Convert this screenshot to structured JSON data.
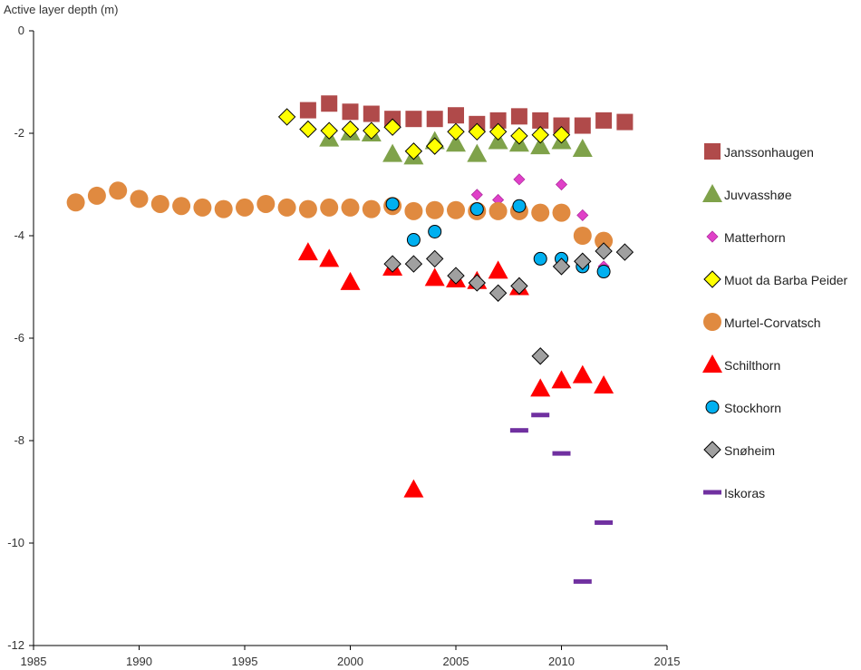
{
  "chart_data": {
    "type": "scatter",
    "ylabel": "Active layer depth (m)",
    "xlabel": "",
    "xlim": [
      1985,
      2015
    ],
    "ylim": [
      -12,
      0
    ],
    "xticks": [
      1985,
      1990,
      1995,
      2000,
      2005,
      2010,
      2015
    ],
    "yticks": [
      0,
      -2,
      -4,
      -6,
      -8,
      -10,
      -12
    ],
    "grid": false,
    "legend_position": "right",
    "series": [
      {
        "name": "Janssonhaugen",
        "marker": "square",
        "color": "#b04a4a",
        "stroke": "none",
        "points": [
          [
            1998,
            -1.55
          ],
          [
            1999,
            -1.42
          ],
          [
            2000,
            -1.58
          ],
          [
            2001,
            -1.62
          ],
          [
            2002,
            -1.72
          ],
          [
            2003,
            -1.72
          ],
          [
            2004,
            -1.72
          ],
          [
            2005,
            -1.65
          ],
          [
            2006,
            -1.82
          ],
          [
            2007,
            -1.75
          ],
          [
            2008,
            -1.67
          ],
          [
            2009,
            -1.75
          ],
          [
            2010,
            -1.85
          ],
          [
            2011,
            -1.85
          ],
          [
            2012,
            -1.75
          ],
          [
            2013,
            -1.78
          ]
        ]
      },
      {
        "name": "Juvvasshøe",
        "marker": "triangle",
        "color": "#7fa24a",
        "stroke": "none",
        "points": [
          [
            1999,
            -2.1
          ],
          [
            2000,
            -1.98
          ],
          [
            2001,
            -2.0
          ],
          [
            2002,
            -2.4
          ],
          [
            2003,
            -2.45
          ],
          [
            2004,
            -2.15
          ],
          [
            2005,
            -2.2
          ],
          [
            2006,
            -2.4
          ],
          [
            2007,
            -2.15
          ],
          [
            2008,
            -2.2
          ],
          [
            2009,
            -2.25
          ],
          [
            2010,
            -2.15
          ],
          [
            2011,
            -2.3
          ]
        ]
      },
      {
        "name": "Matterhorn",
        "marker": "diamond-small",
        "color": "#e040c8",
        "stroke": "#b02ea0",
        "points": [
          [
            2006,
            -3.2
          ],
          [
            2007,
            -3.3
          ],
          [
            2008,
            -2.9
          ],
          [
            2009,
            -3.6
          ],
          [
            2010,
            -3.0
          ],
          [
            2011,
            -3.6
          ],
          [
            2012,
            -4.6
          ]
        ]
      },
      {
        "name": "Muot da Barba Peider",
        "marker": "diamond",
        "color": "#ffff00",
        "stroke": "#000000",
        "points": [
          [
            1997,
            -1.68
          ],
          [
            1998,
            -1.92
          ],
          [
            1999,
            -1.95
          ],
          [
            2000,
            -1.92
          ],
          [
            2001,
            -1.95
          ],
          [
            2002,
            -1.88
          ],
          [
            2003,
            -2.35
          ],
          [
            2004,
            -2.25
          ],
          [
            2005,
            -1.97
          ],
          [
            2006,
            -1.97
          ],
          [
            2007,
            -1.97
          ],
          [
            2008,
            -2.05
          ],
          [
            2009,
            -2.03
          ],
          [
            2010,
            -2.03
          ]
        ]
      },
      {
        "name": "Murtel-Corvatsch",
        "marker": "circle",
        "color": "#e08a40",
        "stroke": "none",
        "points": [
          [
            1987,
            -3.35
          ],
          [
            1988,
            -3.22
          ],
          [
            1989,
            -3.12
          ],
          [
            1990,
            -3.28
          ],
          [
            1991,
            -3.38
          ],
          [
            1992,
            -3.42
          ],
          [
            1993,
            -3.45
          ],
          [
            1994,
            -3.48
          ],
          [
            1995,
            -3.45
          ],
          [
            1996,
            -3.38
          ],
          [
            1997,
            -3.45
          ],
          [
            1998,
            -3.48
          ],
          [
            1999,
            -3.45
          ],
          [
            2000,
            -3.45
          ],
          [
            2001,
            -3.48
          ],
          [
            2002,
            -3.42
          ],
          [
            2003,
            -3.52
          ],
          [
            2004,
            -3.5
          ],
          [
            2005,
            -3.5
          ],
          [
            2006,
            -3.52
          ],
          [
            2007,
            -3.52
          ],
          [
            2008,
            -3.52
          ],
          [
            2009,
            -3.55
          ],
          [
            2010,
            -3.55
          ],
          [
            2011,
            -4.0
          ],
          [
            2012,
            -4.1
          ]
        ]
      },
      {
        "name": "Schilthorn",
        "marker": "triangle",
        "color": "#ff0000",
        "stroke": "none",
        "points": [
          [
            1998,
            -4.32
          ],
          [
            1999,
            -4.45
          ],
          [
            2000,
            -4.9
          ],
          [
            2002,
            -4.62
          ],
          [
            2003,
            -8.95
          ],
          [
            2004,
            -4.82
          ],
          [
            2005,
            -4.85
          ],
          [
            2006,
            -4.88
          ],
          [
            2007,
            -4.68
          ],
          [
            2008,
            -5.0
          ],
          [
            2009,
            -6.98
          ],
          [
            2010,
            -6.82
          ],
          [
            2011,
            -6.72
          ],
          [
            2012,
            -6.92
          ]
        ]
      },
      {
        "name": "Stockhorn",
        "marker": "circle-small",
        "color": "#00b0f0",
        "stroke": "#000000",
        "points": [
          [
            2002,
            -3.38
          ],
          [
            2003,
            -4.08
          ],
          [
            2004,
            -3.92
          ],
          [
            2006,
            -3.48
          ],
          [
            2008,
            -3.42
          ],
          [
            2009,
            -4.45
          ],
          [
            2010,
            -4.45
          ],
          [
            2011,
            -4.6
          ],
          [
            2012,
            -4.7
          ]
        ]
      },
      {
        "name": "Snøheim",
        "marker": "diamond",
        "color": "#a0a0a0",
        "stroke": "#000000",
        "points": [
          [
            2002,
            -4.55
          ],
          [
            2003,
            -4.55
          ],
          [
            2004,
            -4.45
          ],
          [
            2005,
            -4.78
          ],
          [
            2006,
            -4.92
          ],
          [
            2007,
            -5.12
          ],
          [
            2008,
            -4.98
          ],
          [
            2009,
            -6.35
          ],
          [
            2010,
            -4.6
          ],
          [
            2011,
            -4.5
          ],
          [
            2012,
            -4.3
          ],
          [
            2013,
            -4.32
          ]
        ]
      },
      {
        "name": "Iskoras",
        "marker": "dash",
        "color": "#7030a0",
        "stroke": "none",
        "points": [
          [
            2008,
            -7.8
          ],
          [
            2009,
            -7.5
          ],
          [
            2010,
            -8.25
          ],
          [
            2011,
            -10.75
          ],
          [
            2012,
            -9.6
          ]
        ]
      }
    ]
  }
}
